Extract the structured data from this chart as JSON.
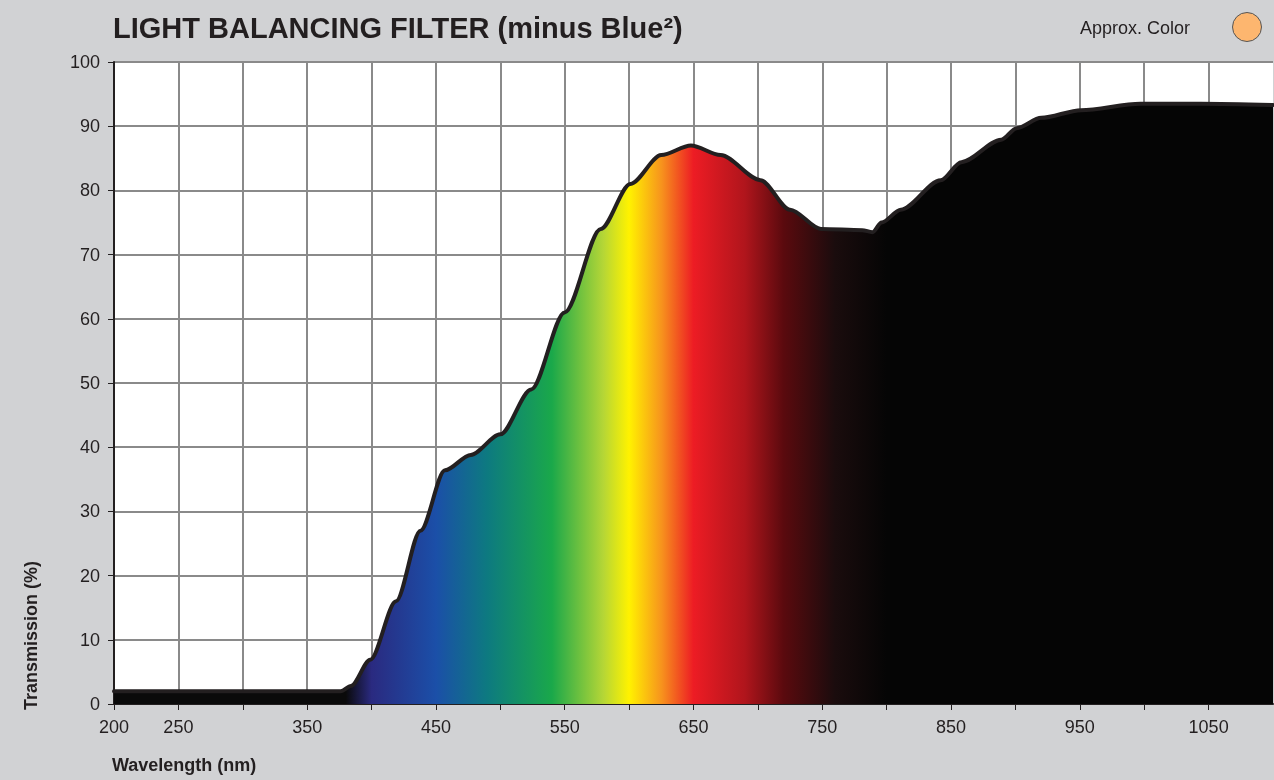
{
  "chart_data": {
    "type": "area",
    "title": "LIGHT BALANCING FILTER (minus Blue²)",
    "xlabel": "Wavelength (nm)",
    "ylabel": "Transmission (%)",
    "annotations": [
      "Approx. Color"
    ],
    "x": [
      200,
      376,
      384,
      399,
      419,
      438,
      457,
      477,
      500,
      524,
      550,
      578,
      601,
      625,
      648,
      671,
      702,
      725,
      749,
      781,
      789,
      796,
      811,
      842,
      858,
      889,
      901,
      920,
      951,
      997,
      1044,
      1100
    ],
    "series": [
      {
        "color": "#231f20",
        "values": [
          2,
          2,
          2.8,
          6.9,
          16,
          27,
          36.4,
          38.8,
          42,
          49,
          61,
          74,
          81,
          85.5,
          87,
          85.5,
          81.6,
          77,
          74,
          73.8,
          73.5,
          75,
          77,
          81.6,
          84.4,
          87.9,
          89.7,
          91.3,
          92.5,
          93.5,
          93.5,
          93.3
        ]
      }
    ],
    "xlim": [
      200,
      1100
    ],
    "xticks": [
      200,
      250,
      {
        "value": 300,
        "label": null
      },
      350,
      {
        "value": 400,
        "label": null
      },
      450,
      {
        "value": 500,
        "label": null
      },
      550,
      {
        "value": 600,
        "label": null
      },
      650,
      {
        "value": 700,
        "label": null
      },
      750,
      {
        "value": 800,
        "label": null
      },
      850,
      {
        "value": 900,
        "label": null
      },
      950,
      {
        "value": 1000,
        "label": null
      },
      1050
    ],
    "ylim": [
      0,
      100
    ],
    "yticks": [
      0,
      10,
      20,
      30,
      40,
      50,
      60,
      70,
      80,
      90,
      100
    ],
    "grid": true,
    "marker": "none",
    "line_style": "solid"
  }
}
